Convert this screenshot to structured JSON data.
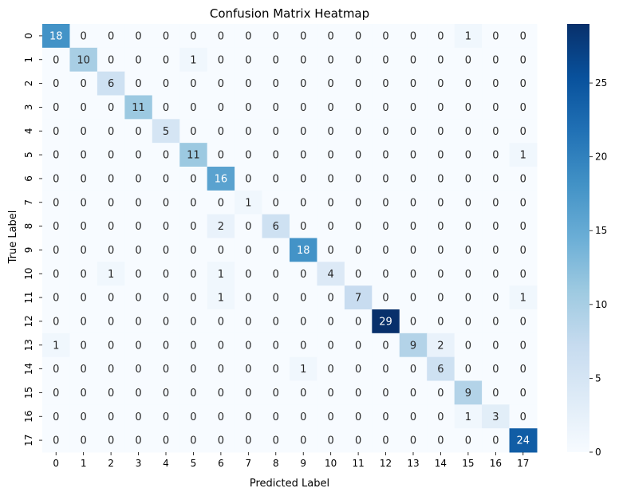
{
  "chart_data": {
    "type": "heatmap",
    "title": "Confusion Matrix Heatmap",
    "xlabel": "Predicted Label",
    "ylabel": "True Label",
    "x_categories": [
      "0",
      "1",
      "2",
      "3",
      "4",
      "5",
      "6",
      "7",
      "8",
      "9",
      "10",
      "11",
      "12",
      "13",
      "14",
      "15",
      "16",
      "17"
    ],
    "y_categories": [
      "0",
      "1",
      "2",
      "3",
      "4",
      "5",
      "6",
      "7",
      "8",
      "9",
      "10",
      "11",
      "12",
      "13",
      "14",
      "15",
      "16",
      "17"
    ],
    "matrix": [
      [
        18,
        0,
        0,
        0,
        0,
        0,
        0,
        0,
        0,
        0,
        0,
        0,
        0,
        0,
        0,
        1,
        0,
        0
      ],
      [
        0,
        10,
        0,
        0,
        0,
        1,
        0,
        0,
        0,
        0,
        0,
        0,
        0,
        0,
        0,
        0,
        0,
        0
      ],
      [
        0,
        0,
        6,
        0,
        0,
        0,
        0,
        0,
        0,
        0,
        0,
        0,
        0,
        0,
        0,
        0,
        0,
        0
      ],
      [
        0,
        0,
        0,
        11,
        0,
        0,
        0,
        0,
        0,
        0,
        0,
        0,
        0,
        0,
        0,
        0,
        0,
        0
      ],
      [
        0,
        0,
        0,
        0,
        5,
        0,
        0,
        0,
        0,
        0,
        0,
        0,
        0,
        0,
        0,
        0,
        0,
        0
      ],
      [
        0,
        0,
        0,
        0,
        0,
        11,
        0,
        0,
        0,
        0,
        0,
        0,
        0,
        0,
        0,
        0,
        0,
        1
      ],
      [
        0,
        0,
        0,
        0,
        0,
        0,
        16,
        0,
        0,
        0,
        0,
        0,
        0,
        0,
        0,
        0,
        0,
        0
      ],
      [
        0,
        0,
        0,
        0,
        0,
        0,
        0,
        1,
        0,
        0,
        0,
        0,
        0,
        0,
        0,
        0,
        0,
        0
      ],
      [
        0,
        0,
        0,
        0,
        0,
        0,
        2,
        0,
        6,
        0,
        0,
        0,
        0,
        0,
        0,
        0,
        0,
        0
      ],
      [
        0,
        0,
        0,
        0,
        0,
        0,
        0,
        0,
        0,
        18,
        0,
        0,
        0,
        0,
        0,
        0,
        0,
        0
      ],
      [
        0,
        0,
        1,
        0,
        0,
        0,
        1,
        0,
        0,
        0,
        4,
        0,
        0,
        0,
        0,
        0,
        0,
        0
      ],
      [
        0,
        0,
        0,
        0,
        0,
        0,
        1,
        0,
        0,
        0,
        0,
        7,
        0,
        0,
        0,
        0,
        0,
        1
      ],
      [
        0,
        0,
        0,
        0,
        0,
        0,
        0,
        0,
        0,
        0,
        0,
        0,
        29,
        0,
        0,
        0,
        0,
        0
      ],
      [
        1,
        0,
        0,
        0,
        0,
        0,
        0,
        0,
        0,
        0,
        0,
        0,
        0,
        9,
        2,
        0,
        0,
        0
      ],
      [
        0,
        0,
        0,
        0,
        0,
        0,
        0,
        0,
        0,
        1,
        0,
        0,
        0,
        0,
        6,
        0,
        0,
        0
      ],
      [
        0,
        0,
        0,
        0,
        0,
        0,
        0,
        0,
        0,
        0,
        0,
        0,
        0,
        0,
        0,
        9,
        0,
        0
      ],
      [
        0,
        0,
        0,
        0,
        0,
        0,
        0,
        0,
        0,
        0,
        0,
        0,
        0,
        0,
        0,
        1,
        3,
        0
      ],
      [
        0,
        0,
        0,
        0,
        0,
        0,
        0,
        0,
        0,
        0,
        0,
        0,
        0,
        0,
        0,
        0,
        0,
        24
      ]
    ],
    "value_range": [
      0,
      29
    ],
    "colormap": "Blues",
    "colorbar": {
      "ticks": [
        "0",
        "5",
        "10",
        "15",
        "20",
        "25"
      ]
    },
    "annotations": true,
    "grid": false
  }
}
